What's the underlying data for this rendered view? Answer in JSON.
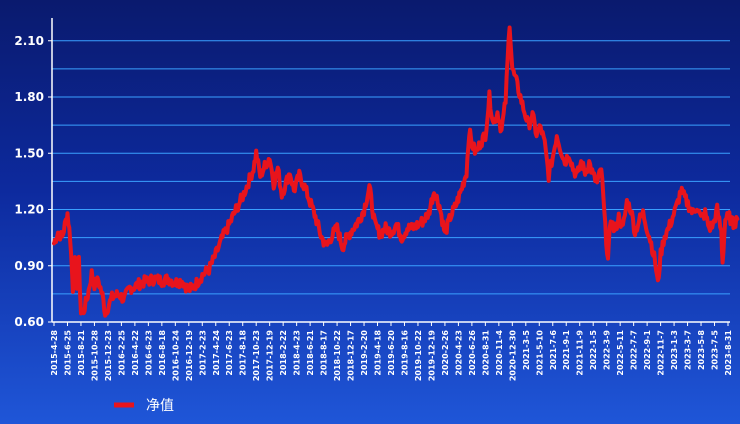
{
  "chart_data": {
    "type": "line",
    "title": "",
    "xlabel": "",
    "ylabel": "",
    "ylim": [
      0.6,
      2.2
    ],
    "yticks": [
      "0.60",
      "0.90",
      "1.20",
      "1.50",
      "1.80",
      "2.10"
    ],
    "grid": true,
    "legend_position": "bottom-left",
    "colors": {
      "line": "#e8141c",
      "grid": "#3aa0ff",
      "axis": "#ffffff"
    },
    "x_categories": [
      "2015-4-28",
      "2015-6-25",
      "2015-8-21",
      "2015-10-28",
      "2015-12-23",
      "2016-2-25",
      "2016-4-22",
      "2016-6-23",
      "2016-8-18",
      "2016-10-24",
      "2016-12-19",
      "2017-2-23",
      "2017-4-24",
      "2017-6-23",
      "2017-8-18",
      "2017-10-23",
      "2017-12-19",
      "2018-2-22",
      "2018-4-23",
      "2018-6-21",
      "2018-8-17",
      "2018-10-22",
      "2018-12-17",
      "2019-2-20",
      "2019-4-18",
      "2019-6-20",
      "2019-8-16",
      "2019-10-22",
      "2019-12-19",
      "2020-2-26",
      "2020-4-23",
      "2020-6-26",
      "2020-8-31",
      "2020-11-4",
      "2020-12-30",
      "2021-3-5",
      "2021-5-10",
      "2021-7-6",
      "2021-9-1",
      "2021-11-9",
      "2022-1-5",
      "2022-3-9",
      "2022-5-11",
      "2022-7-7",
      "2022-9-1",
      "2022-11-7",
      "2023-1-3",
      "2023-3-7",
      "2023-5-8",
      "2023-7-5",
      "2023-8-31"
    ],
    "series": [
      {
        "name": "净值",
        "keypoints": [
          [
            0,
            1.02
          ],
          [
            0.3,
            1.08
          ],
          [
            0.6,
            1.05
          ],
          [
            1.0,
            1.18
          ],
          [
            1.2,
            1.05
          ],
          [
            1.4,
            0.78
          ],
          [
            1.55,
            0.92
          ],
          [
            1.7,
            0.8
          ],
          [
            1.85,
            0.92
          ],
          [
            2.0,
            0.65
          ],
          [
            2.2,
            0.66
          ],
          [
            2.5,
            0.74
          ],
          [
            2.8,
            0.86
          ],
          [
            3.0,
            0.8
          ],
          [
            3.3,
            0.82
          ],
          [
            3.6,
            0.74
          ],
          [
            3.8,
            0.65
          ],
          [
            4.0,
            0.68
          ],
          [
            4.3,
            0.73
          ],
          [
            4.8,
            0.75
          ],
          [
            5.2,
            0.72
          ],
          [
            5.6,
            0.78
          ],
          [
            6.0,
            0.79
          ],
          [
            6.5,
            0.81
          ],
          [
            7.0,
            0.82
          ],
          [
            7.5,
            0.83
          ],
          [
            8.0,
            0.82
          ],
          [
            8.5,
            0.83
          ],
          [
            9.0,
            0.81
          ],
          [
            9.5,
            0.82
          ],
          [
            10.0,
            0.77
          ],
          [
            10.5,
            0.8
          ],
          [
            11.0,
            0.85
          ],
          [
            11.5,
            0.88
          ],
          [
            12.0,
            0.96
          ],
          [
            12.5,
            1.05
          ],
          [
            13.0,
            1.12
          ],
          [
            13.5,
            1.2
          ],
          [
            14.0,
            1.27
          ],
          [
            14.5,
            1.36
          ],
          [
            14.8,
            1.42
          ],
          [
            15.0,
            1.5
          ],
          [
            15.3,
            1.38
          ],
          [
            15.7,
            1.44
          ],
          [
            16.0,
            1.48
          ],
          [
            16.3,
            1.34
          ],
          [
            16.6,
            1.42
          ],
          [
            16.9,
            1.28
          ],
          [
            17.2,
            1.34
          ],
          [
            17.5,
            1.4
          ],
          [
            17.8,
            1.3
          ],
          [
            18.2,
            1.38
          ],
          [
            18.6,
            1.32
          ],
          [
            19.0,
            1.24
          ],
          [
            19.4,
            1.16
          ],
          [
            19.8,
            1.06
          ],
          [
            20.2,
            1.0
          ],
          [
            20.6,
            1.06
          ],
          [
            21.0,
            1.1
          ],
          [
            21.4,
            1.0
          ],
          [
            21.8,
            1.06
          ],
          [
            22.2,
            1.1
          ],
          [
            22.6,
            1.14
          ],
          [
            23.0,
            1.2
          ],
          [
            23.4,
            1.32
          ],
          [
            23.8,
            1.12
          ],
          [
            24.2,
            1.07
          ],
          [
            24.6,
            1.1
          ],
          [
            25.0,
            1.08
          ],
          [
            25.4,
            1.12
          ],
          [
            25.8,
            1.05
          ],
          [
            26.2,
            1.1
          ],
          [
            26.6,
            1.1
          ],
          [
            27.0,
            1.12
          ],
          [
            27.4,
            1.14
          ],
          [
            27.8,
            1.18
          ],
          [
            28.2,
            1.3
          ],
          [
            28.6,
            1.22
          ],
          [
            29.0,
            1.07
          ],
          [
            29.4,
            1.16
          ],
          [
            29.8,
            1.22
          ],
          [
            30.2,
            1.3
          ],
          [
            30.6,
            1.4
          ],
          [
            30.8,
            1.62
          ],
          [
            31.0,
            1.55
          ],
          [
            31.3,
            1.5
          ],
          [
            31.6,
            1.55
          ],
          [
            32.0,
            1.6
          ],
          [
            32.3,
            1.8
          ],
          [
            32.6,
            1.66
          ],
          [
            32.9,
            1.72
          ],
          [
            33.2,
            1.62
          ],
          [
            33.5,
            1.78
          ],
          [
            33.8,
            2.2
          ],
          [
            34.0,
            1.95
          ],
          [
            34.3,
            1.88
          ],
          [
            34.6,
            1.8
          ],
          [
            34.9,
            1.72
          ],
          [
            35.2,
            1.65
          ],
          [
            35.5,
            1.7
          ],
          [
            35.8,
            1.6
          ],
          [
            36.1,
            1.64
          ],
          [
            36.4,
            1.55
          ],
          [
            36.7,
            1.38
          ],
          [
            37.0,
            1.48
          ],
          [
            37.3,
            1.6
          ],
          [
            37.6,
            1.52
          ],
          [
            37.9,
            1.45
          ],
          [
            38.2,
            1.5
          ],
          [
            38.5,
            1.42
          ],
          [
            38.8,
            1.38
          ],
          [
            39.1,
            1.45
          ],
          [
            39.4,
            1.4
          ],
          [
            39.7,
            1.45
          ],
          [
            40.0,
            1.38
          ],
          [
            40.3,
            1.34
          ],
          [
            40.6,
            1.42
          ],
          [
            40.9,
            1.1
          ],
          [
            41.1,
            0.93
          ],
          [
            41.3,
            1.15
          ],
          [
            41.6,
            1.08
          ],
          [
            41.9,
            1.16
          ],
          [
            42.2,
            1.1
          ],
          [
            42.5,
            1.24
          ],
          [
            42.8,
            1.2
          ],
          [
            43.1,
            1.08
          ],
          [
            43.4,
            1.14
          ],
          [
            43.7,
            1.18
          ],
          [
            44.0,
            1.1
          ],
          [
            44.3,
            1.02
          ],
          [
            44.6,
            0.92
          ],
          [
            44.8,
            0.8
          ],
          [
            45.0,
            0.96
          ],
          [
            45.3,
            1.06
          ],
          [
            45.6,
            1.1
          ],
          [
            45.9,
            1.16
          ],
          [
            46.2,
            1.22
          ],
          [
            46.5,
            1.3
          ],
          [
            46.8,
            1.26
          ],
          [
            47.1,
            1.22
          ],
          [
            47.4,
            1.18
          ],
          [
            47.7,
            1.22
          ],
          [
            48.0,
            1.15
          ],
          [
            48.3,
            1.18
          ],
          [
            48.6,
            1.1
          ],
          [
            48.9,
            1.12
          ],
          [
            49.2,
            1.2
          ],
          [
            49.5,
            1.08
          ],
          [
            49.6,
            0.92
          ],
          [
            49.8,
            1.15
          ],
          [
            50.1,
            1.16
          ],
          [
            50.4,
            1.12
          ],
          [
            50.7,
            1.15
          ]
        ]
      }
    ]
  }
}
